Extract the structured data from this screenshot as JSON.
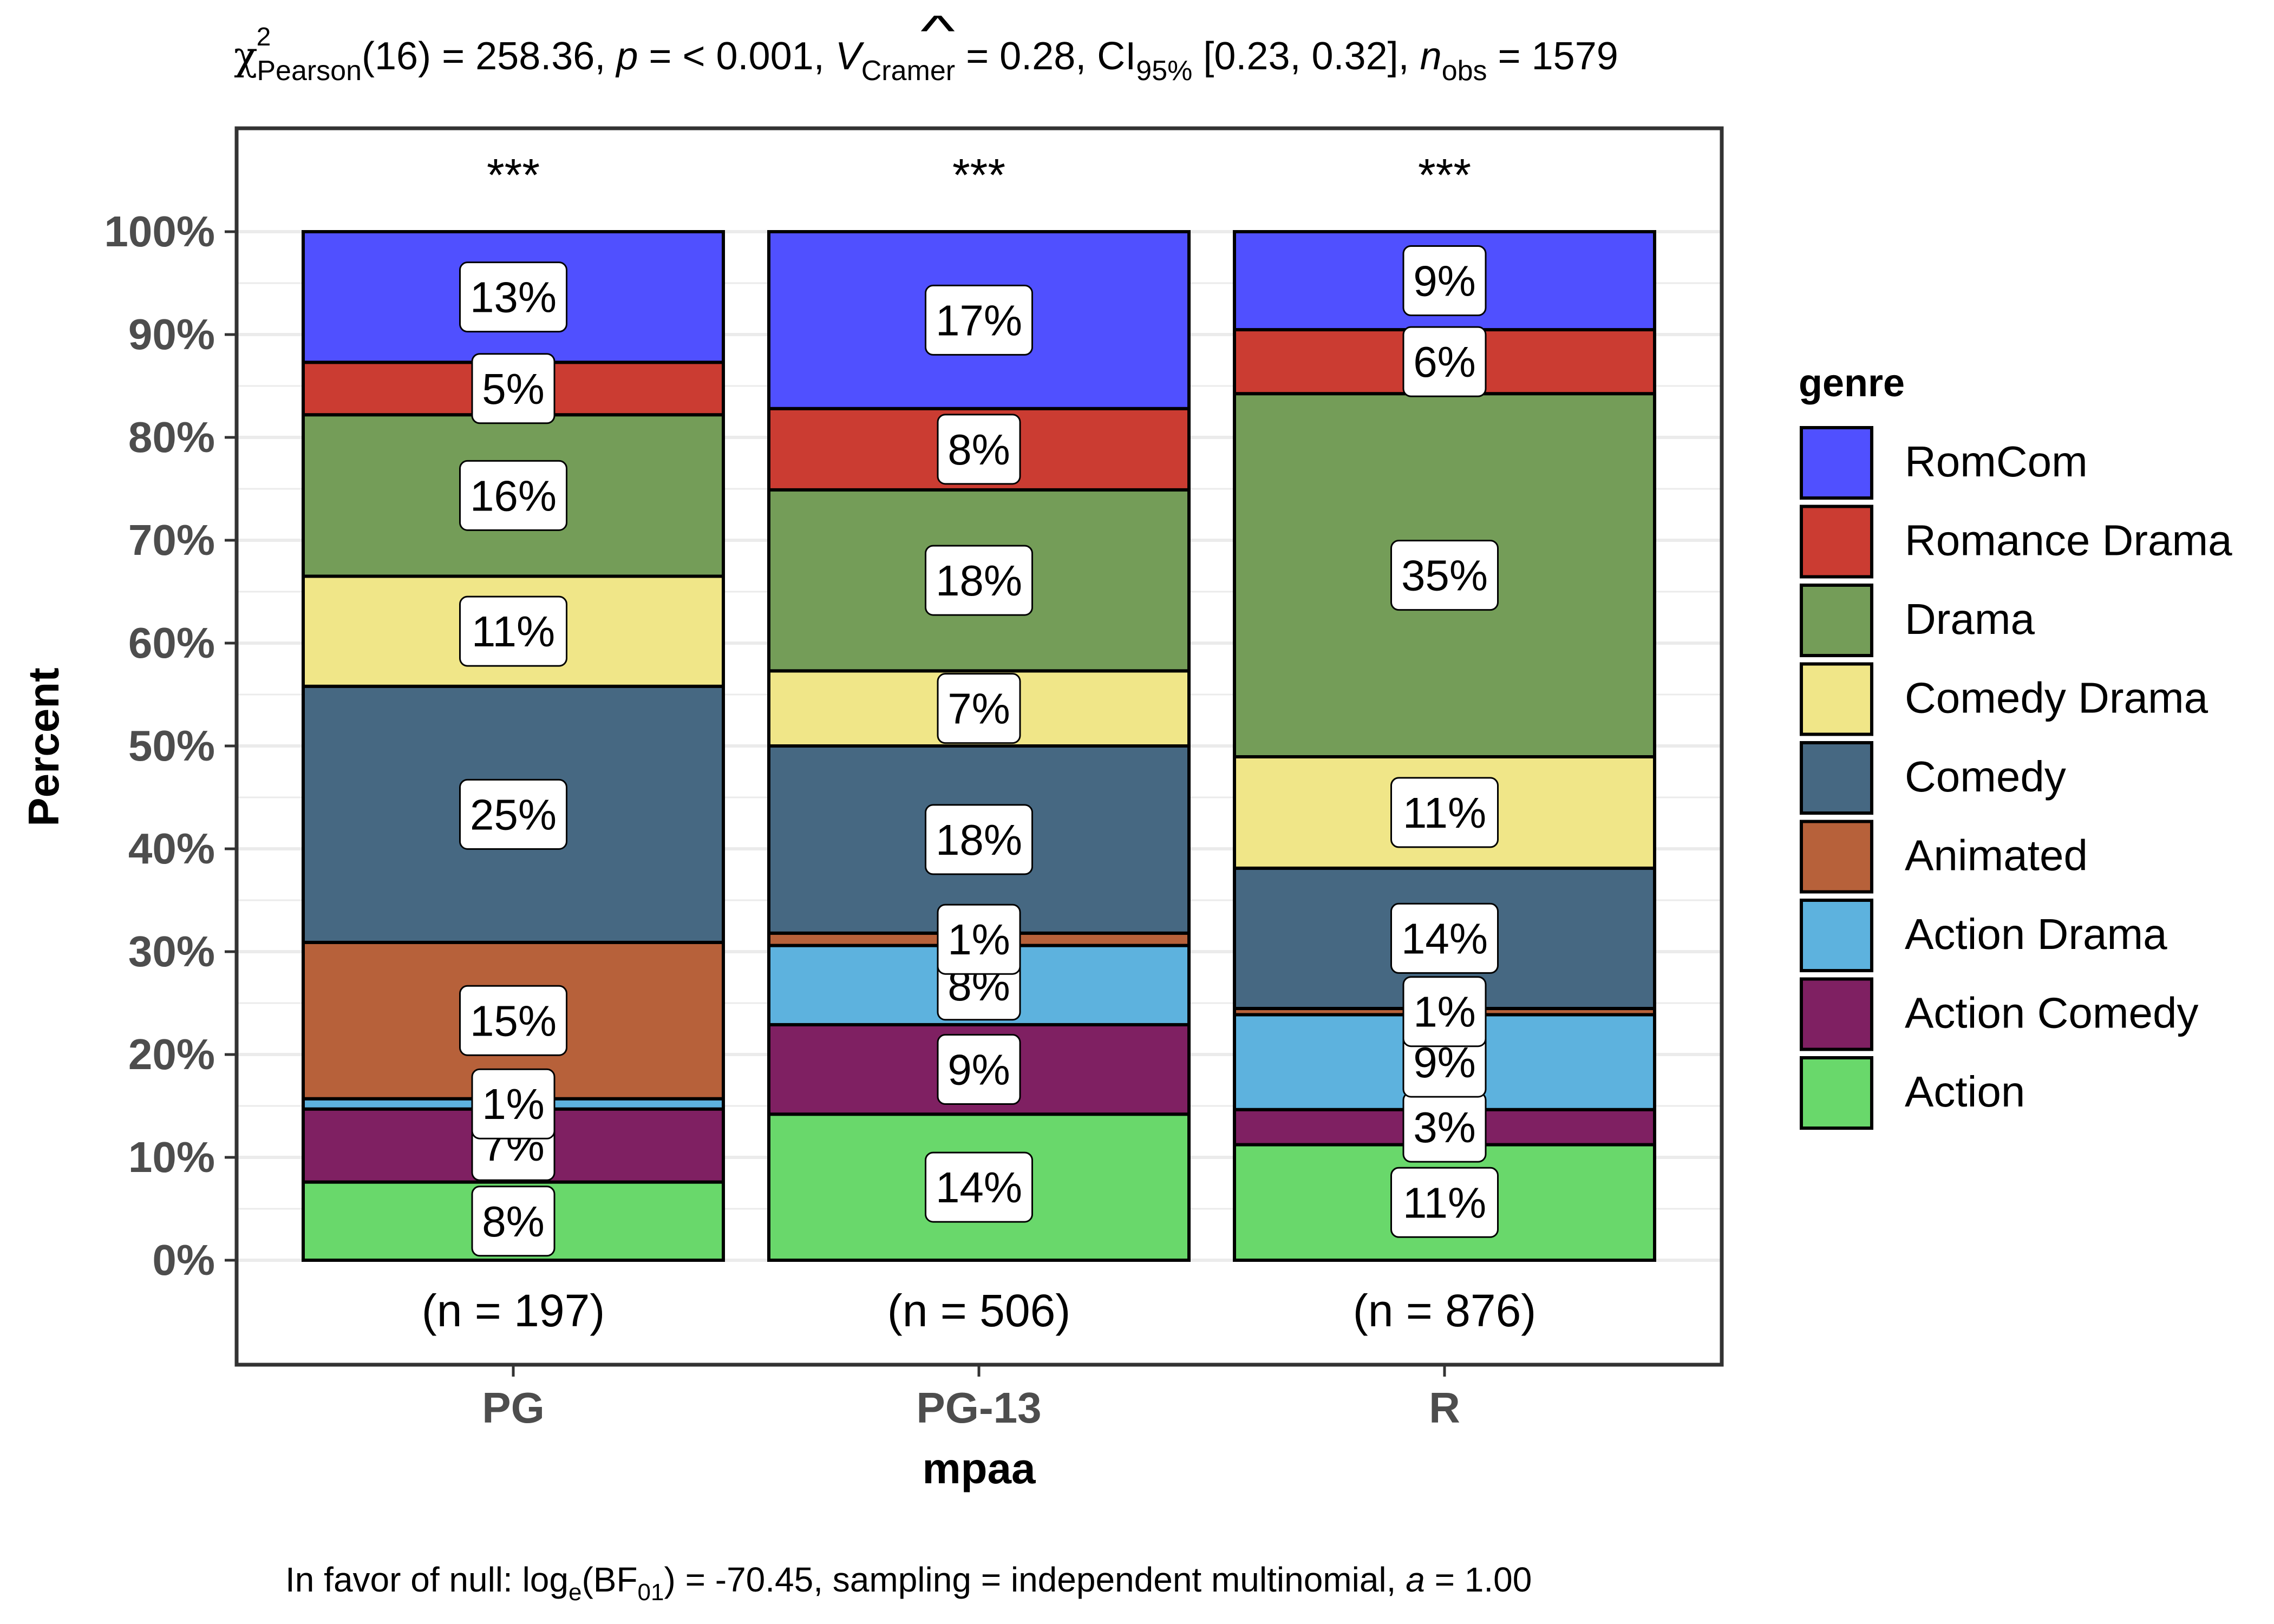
{
  "chart_data": {
    "type": "bar",
    "stacked": true,
    "percent": true,
    "title": {
      "chi": "χ",
      "chi_sup": "2",
      "chi_sub": "Pearson",
      "part1": "(16) = 258.36, ",
      "p_var": "p",
      "part2": " = < 0.001, ",
      "v_var": "V",
      "v_hat": "^",
      "v_sub": "Cramer",
      "part3": " = 0.28, CI",
      "ci_sub": "95%",
      "part4": " [0.23, 0.32], ",
      "n_var": "n",
      "n_sub": "obs",
      "part5": " = 1579"
    },
    "caption": {
      "part1": "In favor of null: log",
      "log_sub": "e",
      "part2": "(BF",
      "bf_sub": "01",
      "part3": ") = -70.45, sampling = independent multinomial, ",
      "a_var": "a",
      "part4": " = 1.00"
    },
    "xlabel": "mpaa",
    "ylabel": "Percent",
    "ylim": [
      0,
      100
    ],
    "yticks": [
      "0%",
      "10%",
      "20%",
      "30%",
      "40%",
      "50%",
      "60%",
      "70%",
      "80%",
      "90%",
      "100%"
    ],
    "grid": true,
    "legend": {
      "title": "genre",
      "position": "right",
      "entries": [
        "RomCom",
        "Romance Drama",
        "Drama",
        "Comedy Drama",
        "Comedy",
        "Animated",
        "Action Drama",
        "Action Comedy",
        "Action"
      ]
    },
    "categories": [
      "PG",
      "PG-13",
      "R"
    ],
    "significance": [
      "***",
      "***",
      "***"
    ],
    "counts": [
      "(n = 197)",
      "(n = 506)",
      "(n = 876)"
    ],
    "series": [
      {
        "name": "Action",
        "color": "#69D86B",
        "values": [
          7.6,
          14.2,
          11.2
        ],
        "labels": [
          "8%",
          "14%",
          "11%"
        ]
      },
      {
        "name": "Action Comedy",
        "color": "#7F2062",
        "values": [
          7.1,
          8.7,
          3.4
        ],
        "labels": [
          "7%",
          "9%",
          "3%"
        ]
      },
      {
        "name": "Action Drama",
        "color": "#5DB2DE",
        "values": [
          1.0,
          7.7,
          9.2
        ],
        "labels": [
          "1%",
          "8%",
          "9%"
        ]
      },
      {
        "name": "Animated",
        "color": "#B7613A",
        "values": [
          15.2,
          1.2,
          0.6
        ],
        "labels": [
          "15%",
          "1%",
          "1%"
        ]
      },
      {
        "name": "Comedy",
        "color": "#466882",
        "values": [
          24.9,
          18.2,
          13.6
        ],
        "labels": [
          "25%",
          "18%",
          "14%"
        ]
      },
      {
        "name": "Comedy Drama",
        "color": "#F0E688",
        "values": [
          10.7,
          7.3,
          10.8
        ],
        "labels": [
          "11%",
          "7%",
          "11%"
        ]
      },
      {
        "name": "Drama",
        "color": "#749D58",
        "values": [
          15.7,
          17.6,
          35.2
        ],
        "labels": [
          "16%",
          "18%",
          "35%"
        ]
      },
      {
        "name": "Romance Drama",
        "color": "#CB3C32",
        "values": [
          5.1,
          7.9,
          6.2
        ],
        "labels": [
          "5%",
          "8%",
          "6%"
        ]
      },
      {
        "name": "RomCom",
        "color": "#5050FF",
        "values": [
          12.7,
          17.2,
          9.5
        ],
        "labels": [
          "13%",
          "17%",
          "9%"
        ]
      }
    ]
  }
}
